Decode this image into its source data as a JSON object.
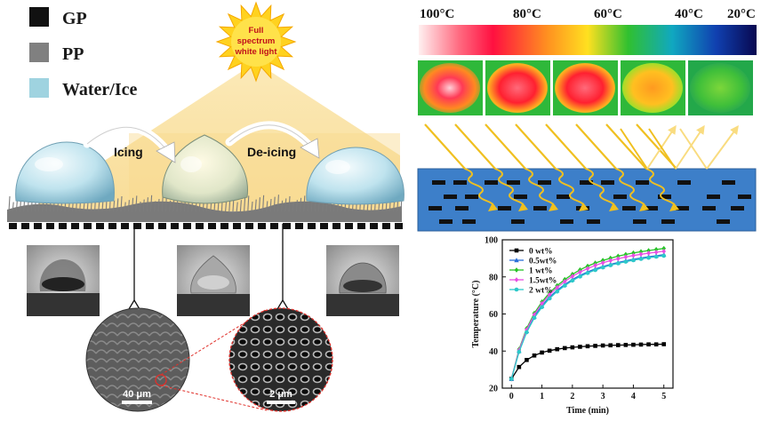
{
  "legend": {
    "items": [
      {
        "label": "GP",
        "color": "#111111"
      },
      {
        "label": "PP",
        "color": "#808080"
      },
      {
        "label": "Water/Ice",
        "color": "#9fd3e0"
      }
    ]
  },
  "sun": {
    "line1": "Full",
    "line2": "spectrum",
    "line3": "white light",
    "color": "#ffd21f"
  },
  "process": {
    "step1": "Icing",
    "step2": "De-icing"
  },
  "micrographs": {
    "scale1": "40 μm",
    "scale2": "2 μm"
  },
  "colorbar": {
    "labels": [
      "100°C",
      "80°C",
      "60°C",
      "40°C",
      "20°C"
    ]
  },
  "thermal_images": {
    "count": 5
  },
  "chart_data": {
    "type": "line",
    "xlabel": "Time (min)",
    "ylabel": "Temperature (°C)",
    "xlim": [
      -0.3,
      5.3
    ],
    "ylim": [
      20,
      100
    ],
    "xticks": [
      0,
      1,
      2,
      3,
      4,
      5
    ],
    "yticks": [
      20,
      40,
      60,
      80,
      100
    ],
    "legend_position": "top-left",
    "x": [
      0,
      0.25,
      0.5,
      0.75,
      1,
      1.25,
      1.5,
      1.75,
      2,
      2.25,
      2.5,
      2.75,
      3,
      3.25,
      3.5,
      3.75,
      4,
      4.25,
      4.5,
      4.75,
      5
    ],
    "series": [
      {
        "name": "0  wt%",
        "color": "#000000",
        "marker": "square",
        "values": [
          25,
          31.4,
          35.2,
          37.6,
          39.2,
          40.2,
          41.0,
          41.6,
          42.0,
          42.3,
          42.6,
          42.8,
          43.0,
          43.1,
          43.2,
          43.3,
          43.4,
          43.5,
          43.6,
          43.6,
          43.7
        ]
      },
      {
        "name": "0.5wt%",
        "color": "#2a6fd8",
        "marker": "triangle",
        "values": [
          25,
          40.1,
          50.8,
          58.6,
          64.4,
          69.1,
          72.8,
          75.9,
          78.6,
          80.8,
          82.7,
          84.3,
          85.6,
          86.8,
          87.8,
          88.7,
          89.5,
          90.2,
          90.9,
          91.4,
          92.0
        ]
      },
      {
        "name": "1  wt%",
        "color": "#27c427",
        "marker": "diamond",
        "values": [
          25,
          41.0,
          52.2,
          60.4,
          66.5,
          71.4,
          75.3,
          78.6,
          81.4,
          83.8,
          85.8,
          87.5,
          88.9,
          90.1,
          91.2,
          92.1,
          92.9,
          93.6,
          94.2,
          94.8,
          95.3
        ]
      },
      {
        "name": "1.5wt%",
        "color": "#e94fe2",
        "marker": "diamond",
        "values": [
          25,
          40.5,
          51.5,
          59.6,
          65.6,
          70.4,
          74.3,
          77.5,
          80.3,
          82.6,
          84.5,
          86.2,
          87.6,
          88.8,
          89.8,
          90.7,
          91.5,
          92.2,
          92.8,
          93.3,
          93.8
        ]
      },
      {
        "name": "2  wt%",
        "color": "#2cc9c9",
        "marker": "star",
        "values": [
          25,
          39.6,
          50.1,
          57.9,
          63.7,
          68.4,
          72.1,
          75.3,
          78.0,
          80.2,
          82.1,
          83.7,
          85.1,
          86.3,
          87.3,
          88.2,
          89.0,
          89.7,
          90.3,
          90.9,
          91.4
        ]
      }
    ]
  }
}
